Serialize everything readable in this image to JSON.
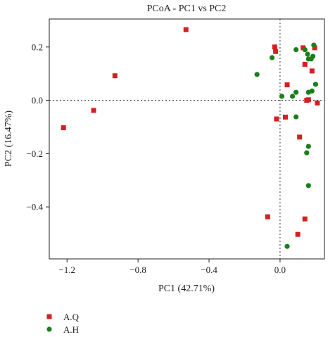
{
  "chart_data": {
    "type": "scatter",
    "title": "PCoA - PC1 vs PC2",
    "xlabel": "PC1 (42.71%)",
    "ylabel": "PC2 (16.47%)",
    "xlim": [
      -1.3,
      0.25
    ],
    "ylim": [
      -0.595,
      0.305
    ],
    "xticks": [
      -1.2,
      -0.8,
      -0.4,
      0.0
    ],
    "yticks": [
      0.2,
      0.0,
      -0.2,
      -0.4
    ],
    "xtick_labels": [
      "−1.2",
      "−0.8",
      "−0.4",
      "0.0"
    ],
    "ytick_labels": [
      "0.2",
      "0.0",
      "−0.2",
      "−0.4"
    ],
    "zero_lines": true,
    "legend_position": "bottom-left",
    "series": [
      {
        "name": "A.Q",
        "marker": "square",
        "color": "#d42020",
        "points": [
          [
            -1.22,
            -0.103
          ],
          [
            -1.05,
            -0.038
          ],
          [
            -0.93,
            0.092
          ],
          [
            -0.53,
            0.265
          ],
          [
            -0.03,
            0.2
          ],
          [
            -0.025,
            0.183
          ],
          [
            0.13,
            0.197
          ],
          [
            0.195,
            0.197
          ],
          [
            0.14,
            0.135
          ],
          [
            0.18,
            0.11
          ],
          [
            0.04,
            0.058
          ],
          [
            -0.02,
            -0.07
          ],
          [
            0.03,
            -0.063
          ],
          [
            0.15,
            0.0
          ],
          [
            0.16,
            0.002
          ],
          [
            0.21,
            -0.01
          ],
          [
            0.11,
            -0.138
          ],
          [
            -0.07,
            -0.437
          ],
          [
            0.14,
            -0.445
          ],
          [
            0.1,
            -0.503
          ]
        ]
      },
      {
        "name": "A.H",
        "marker": "circle",
        "color": "#1a7f1a",
        "points": [
          [
            0.19,
            0.207
          ],
          [
            0.09,
            0.19
          ],
          [
            0.14,
            0.19
          ],
          [
            0.155,
            0.173
          ],
          [
            0.185,
            0.165
          ],
          [
            0.16,
            0.155
          ],
          [
            0.175,
            0.155
          ],
          [
            -0.045,
            0.16
          ],
          [
            -0.13,
            0.097
          ],
          [
            0.2,
            0.06
          ],
          [
            0.09,
            0.03
          ],
          [
            0.16,
            0.03
          ],
          [
            0.18,
            0.035
          ],
          [
            0.07,
            0.015
          ],
          [
            0.01,
            0.015
          ],
          [
            0.09,
            -0.062
          ],
          [
            0.16,
            -0.173
          ],
          [
            0.15,
            -0.197
          ],
          [
            0.16,
            -0.32
          ],
          [
            0.04,
            -0.548
          ]
        ]
      }
    ]
  }
}
